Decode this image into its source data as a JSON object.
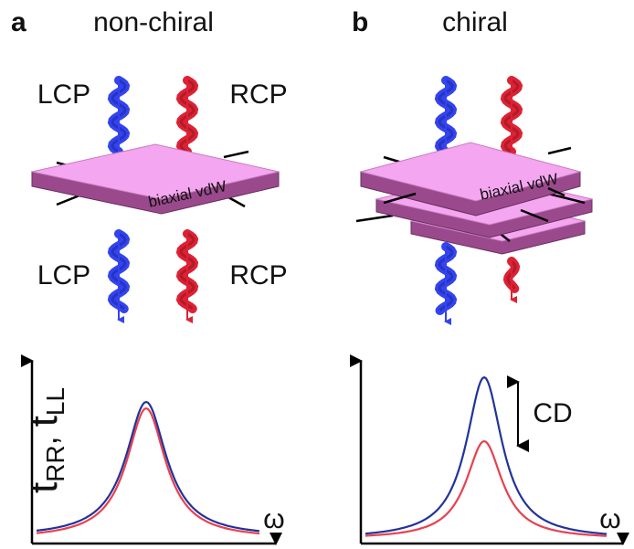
{
  "panels": [
    {
      "label": "a",
      "title": "non-chiral",
      "top_labels": [
        "LCP",
        "RCP"
      ],
      "bottom_labels": [
        "LCP",
        "RCP"
      ],
      "material": "biaxial vdW",
      "y_label": {
        "t1": "t",
        "sub1": "RR",
        "sep": ", ",
        "t2": "t",
        "sub2": "LL"
      },
      "x_label": "ω"
    },
    {
      "label": "b",
      "title": "chiral",
      "material": "biaxial vdW",
      "x_label": "ω",
      "annotation": "CD"
    }
  ]
}
